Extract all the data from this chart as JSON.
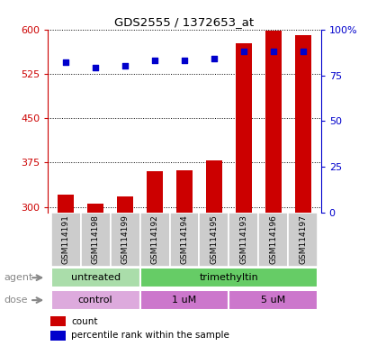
{
  "title": "GDS2555 / 1372653_at",
  "samples": [
    "GSM114191",
    "GSM114198",
    "GSM114199",
    "GSM114192",
    "GSM114194",
    "GSM114195",
    "GSM114193",
    "GSM114196",
    "GSM114197"
  ],
  "bar_values": [
    320,
    305,
    318,
    360,
    362,
    378,
    577,
    598,
    590
  ],
  "percentile_values": [
    82,
    79,
    80,
    83,
    83,
    84,
    88,
    88,
    88
  ],
  "bar_color": "#cc0000",
  "dot_color": "#0000cc",
  "ylim_left": [
    290,
    600
  ],
  "ylim_right": [
    0,
    100
  ],
  "yticks_left": [
    300,
    375,
    450,
    525,
    600
  ],
  "yticks_right": [
    0,
    25,
    50,
    75,
    100
  ],
  "agent_groups": [
    {
      "label": "untreated",
      "start": 0,
      "end": 3,
      "color": "#aaddaa"
    },
    {
      "label": "trimethyltin",
      "start": 3,
      "end": 9,
      "color": "#66cc66"
    }
  ],
  "dose_groups": [
    {
      "label": "control",
      "start": 0,
      "end": 3,
      "color": "#ddaadd"
    },
    {
      "label": "1 uM",
      "start": 3,
      "end": 6,
      "color": "#cc77cc"
    },
    {
      "label": "5 uM",
      "start": 6,
      "end": 9,
      "color": "#cc77cc"
    }
  ],
  "legend_count_label": "count",
  "legend_pct_label": "percentile rank within the sample",
  "agent_label": "agent",
  "dose_label": "dose",
  "left_axis_color": "#cc0000",
  "right_axis_color": "#0000cc",
  "sample_box_color": "#cccccc",
  "background_color": "#ffffff"
}
